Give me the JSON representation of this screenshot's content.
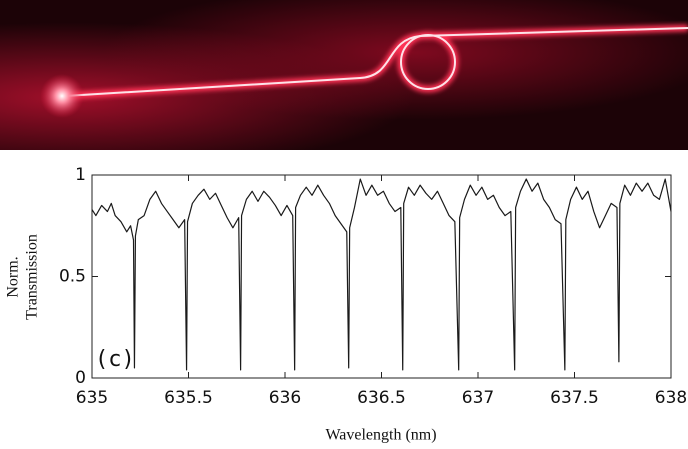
{
  "chart_data": {
    "type": "line",
    "xlabel": "Wavelength (nm)",
    "ylabel": [
      "Norm.",
      "Transmission"
    ],
    "annotation": "(c)",
    "color": "#1a1a1a",
    "xlim": [
      635,
      638
    ],
    "ylim": [
      0,
      1
    ],
    "xticks": [
      635,
      635.5,
      636,
      636.5,
      637,
      637.5,
      638
    ],
    "yticks": [
      0,
      0.5,
      1
    ],
    "x": [
      635.0,
      635.02,
      635.05,
      635.08,
      635.1,
      635.12,
      635.15,
      635.18,
      635.2,
      635.215,
      635.22,
      635.225,
      635.24,
      635.27,
      635.3,
      635.33,
      635.36,
      635.39,
      635.42,
      635.45,
      635.48,
      635.49,
      635.495,
      635.52,
      635.55,
      635.58,
      635.61,
      635.64,
      635.67,
      635.7,
      635.73,
      635.76,
      635.77,
      635.775,
      635.8,
      635.83,
      635.86,
      635.89,
      635.92,
      635.95,
      635.98,
      636.01,
      636.04,
      636.05,
      636.055,
      636.08,
      636.11,
      636.14,
      636.17,
      636.2,
      636.23,
      636.26,
      636.29,
      636.32,
      636.33,
      636.335,
      636.36,
      636.39,
      636.42,
      636.45,
      636.48,
      636.51,
      636.54,
      636.57,
      636.6,
      636.61,
      636.615,
      636.64,
      636.67,
      636.7,
      636.73,
      636.76,
      636.79,
      636.82,
      636.85,
      636.88,
      636.9,
      636.905,
      636.93,
      636.96,
      636.99,
      637.02,
      637.05,
      637.08,
      637.11,
      637.14,
      637.17,
      637.19,
      637.195,
      637.22,
      637.25,
      637.28,
      637.31,
      637.34,
      637.37,
      637.4,
      637.43,
      637.45,
      637.455,
      637.48,
      637.51,
      637.54,
      637.57,
      637.6,
      637.63,
      637.66,
      637.69,
      637.72,
      637.73,
      637.735,
      637.76,
      637.79,
      637.82,
      637.85,
      637.88,
      637.91,
      637.94,
      637.97,
      638.0
    ],
    "values": [
      0.83,
      0.8,
      0.85,
      0.82,
      0.86,
      0.8,
      0.77,
      0.72,
      0.75,
      0.68,
      0.05,
      0.7,
      0.78,
      0.8,
      0.88,
      0.92,
      0.86,
      0.82,
      0.78,
      0.74,
      0.78,
      0.04,
      0.77,
      0.86,
      0.9,
      0.93,
      0.88,
      0.91,
      0.85,
      0.79,
      0.74,
      0.79,
      0.04,
      0.8,
      0.88,
      0.92,
      0.87,
      0.92,
      0.89,
      0.85,
      0.8,
      0.85,
      0.8,
      0.04,
      0.84,
      0.9,
      0.94,
      0.9,
      0.95,
      0.9,
      0.86,
      0.8,
      0.76,
      0.72,
      0.05,
      0.74,
      0.84,
      0.98,
      0.9,
      0.95,
      0.9,
      0.92,
      0.86,
      0.82,
      0.84,
      0.04,
      0.86,
      0.94,
      0.9,
      0.95,
      0.91,
      0.88,
      0.92,
      0.86,
      0.8,
      0.77,
      0.04,
      0.79,
      0.88,
      0.95,
      0.9,
      0.94,
      0.88,
      0.9,
      0.84,
      0.8,
      0.82,
      0.04,
      0.84,
      0.92,
      0.98,
      0.92,
      0.96,
      0.88,
      0.84,
      0.78,
      0.76,
      0.04,
      0.78,
      0.88,
      0.94,
      0.88,
      0.92,
      0.82,
      0.74,
      0.8,
      0.86,
      0.84,
      0.08,
      0.86,
      0.95,
      0.9,
      0.96,
      0.92,
      0.96,
      0.9,
      0.88,
      0.98,
      0.82
    ]
  }
}
